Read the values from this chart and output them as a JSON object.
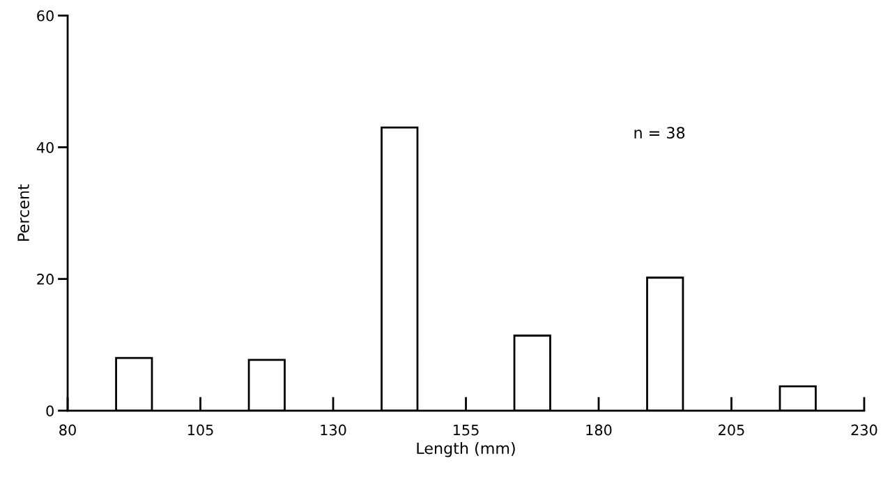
{
  "chart_data": {
    "type": "bar",
    "xlabel": "Length (mm)",
    "ylabel": "Percent",
    "x": [
      92.5,
      117.5,
      142.5,
      167.5,
      192.5,
      217.5
    ],
    "values": [
      8.0,
      7.7,
      43.0,
      11.4,
      20.2,
      3.7
    ],
    "color": "#ffffff",
    "xlim": [
      80,
      230
    ],
    "xticks": [
      80,
      105,
      130,
      155,
      180,
      205,
      230
    ],
    "ylim": [
      0,
      60
    ],
    "yticks": [
      0,
      20,
      40,
      60
    ],
    "annotations": [
      "n = 38"
    ],
    "grid": false,
    "legend": false
  }
}
